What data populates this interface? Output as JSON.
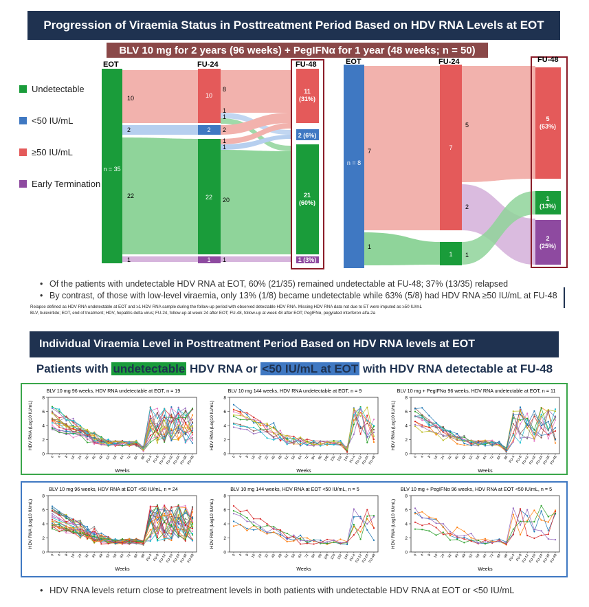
{
  "banner1": "Progression of Viraemia Status in Posttreatment Period Based on HDV RNA Levels at EOT",
  "subtitle1": "BLV 10 mg for 2 years (96 weeks) + PegIFNα for 1 year (48 weeks; n = 50)",
  "legend": [
    {
      "label": "Undetectable",
      "color": "#1a9c3a"
    },
    {
      "label": "<50 IU/mL",
      "color": "#3f78c2"
    },
    {
      "label": "≥50 IU/mL",
      "color": "#e45a5a"
    },
    {
      "label": "Early Termination",
      "color": "#8e4aa0"
    }
  ],
  "colors": {
    "undetectable": "#1a9c3a",
    "low": "#3f78c2",
    "high": "#e45a5a",
    "et": "#8e4aa0",
    "flow_red": "#f2b2ad",
    "flow_green": "#8fd49a",
    "flow_blue": "#b6cfef",
    "flow_purple": "#d6b4dc",
    "box": "#8a1c28",
    "banner": "#1f3250"
  },
  "sankey1": {
    "headers": {
      "eot": "EOT",
      "fu24": "FU-24",
      "fu48": "FU-48"
    },
    "eot_total": "n = 35",
    "eot_flow_labels": [
      "10",
      "2",
      "22",
      "1"
    ],
    "fu24_nodes": [
      "10",
      "2",
      "22",
      "1"
    ],
    "fu24_flow_labels": [
      "8",
      "1",
      "1",
      "2",
      "1",
      "1",
      "20",
      "1"
    ],
    "fu48_nodes": [
      "11\n(31%)",
      "2 (6%)",
      "21\n(60%)",
      "1 (3%)"
    ]
  },
  "sankey2": {
    "headers": {
      "eot": "EOT",
      "fu24": "FU-24",
      "fu48": "FU-48"
    },
    "eot_total": "n = 8",
    "eot_flow_labels": [
      "7",
      "1"
    ],
    "fu24_nodes": [
      "7",
      "1"
    ],
    "fu24_flow_labels": [
      "5",
      "2",
      "1"
    ],
    "fu48_nodes": [
      "5\n(63%)",
      "1\n(13%)",
      "2\n(25%)"
    ]
  },
  "bullets1": [
    "Of the patients with undetectable HDV RNA at EOT, 60% (21/35) remained undetectable at FU-48; 37% (13/35) relapsed",
    "By contrast, of those with low-level viraemia, only 13% (1/8) became undetectable while 63% (5/8) had HDV RNA ≥50 IU/mL at FU-48"
  ],
  "footnote1": "Relapse defined as HDV RNA undetectable at EOT and ≥1 HDV RNA sample during the follow-up period with observed detectable HDV RNA. Missing HDV RNA data not due to ET were imputed as ≥50 IU/mL",
  "footnote2": "BLV, bulevirtide; EOT, end of treatment; HDV, hepatitis delta virus; FU-24, follow-up at week 24 after EOT; FU-48, follow-up at week 48 after EOT; PegIFNα, pegylated interferon alfa-2a",
  "banner2": "Individual Viraemia Level in Posttreatment Period Based on HDV RNA levels at EOT",
  "heading2": {
    "pre": "Patients with ",
    "hl1": "undetectable",
    "mid": " HDV RNA or ",
    "hl2": "<50 IU/mL at EOT",
    "post": " with HDV RNA detectable at FU-48"
  },
  "panel_ylabel": "HDV RNA (Log10 IU/mL)",
  "panel_xlabel": "Weeks",
  "panel_xticks_96": [
    "0",
    "4",
    "8",
    "16",
    "24",
    "32",
    "40",
    "48",
    "52",
    "56",
    "64",
    "72",
    "84",
    "96",
    "FU-4",
    "FU-8",
    "FU-12",
    "FU-16",
    "FU-24",
    "FU-36",
    "FU-48"
  ],
  "panel_xticks_144": [
    "0",
    "4",
    "8",
    "16",
    "24",
    "32",
    "40",
    "48",
    "52",
    "56",
    "64",
    "72",
    "84",
    "96",
    "108",
    "120",
    "132",
    "144",
    "FU-4",
    "FU-12",
    "FU-24",
    "FU-48"
  ],
  "panel_yticks": [
    "0",
    "2",
    "4",
    "6",
    "8"
  ],
  "panels": [
    {
      "title": "BLV 10 mg 96 weeks, HDV RNA undetectable at EOT, n = 19",
      "n": 19,
      "weeks": 96
    },
    {
      "title": "BLV 10 mg 144 weeks, HDV RNA undetectable at EOT, n = 9",
      "n": 9,
      "weeks": 144
    },
    {
      "title": "BLV 10 mg + PegIFNα 96 weeks, HDV RNA undetectable at EOT, n = 11",
      "n": 11,
      "weeks": 96
    },
    {
      "title": "BLV 10 mg 96 weeks, HDV RNA at EOT <50 IU/mL, n = 24",
      "n": 24,
      "weeks": 96
    },
    {
      "title": "BLV 10 mg 144 weeks, HDV RNA at EOT <50 IU/mL, n = 5",
      "n": 5,
      "weeks": 144
    },
    {
      "title": "BLV 10 mg + PegIFNα 96 weeks, HDV RNA at EOT <50 IU/mL, n = 5",
      "n": 5,
      "weeks": 96
    }
  ],
  "series_colors": [
    "#1f77b4",
    "#ff7f0e",
    "#2ca02c",
    "#d62728",
    "#9467bd",
    "#8c564b",
    "#e377c2",
    "#17becf",
    "#bcbd22",
    "#7f7f7f"
  ],
  "bullet2": "HDV RNA levels return close to pretreatment levels in both patients with undetectable HDV RNA at EOT or <50 IU/mL"
}
